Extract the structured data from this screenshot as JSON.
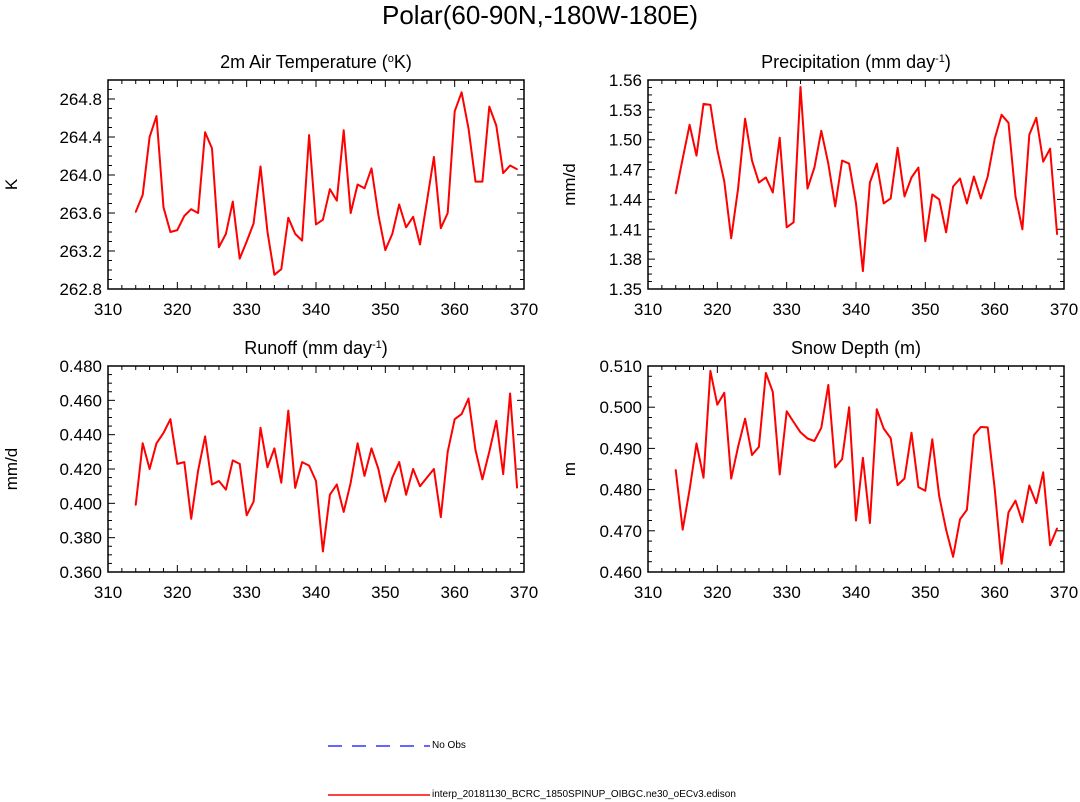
{
  "title": "Polar(60-90N,-180W-180E)",
  "colors": {
    "model": "#ff0000",
    "obs": "#3333ff",
    "axis": "#000000"
  },
  "legend": {
    "obs_label": "No Obs",
    "model_label": "interp_20181130_BCRC_1850SPINUP_OIBGC.ne30_oECv3.edison"
  },
  "chart_data": [
    {
      "type": "line",
      "title": "2m Air Temperature (",
      "title_sup": "o",
      "title_tail": "K)",
      "xlabel": "",
      "ylabel": "K",
      "xlim": [
        310,
        370
      ],
      "ylim": [
        262.8,
        265.0
      ],
      "xticks": [
        "310",
        "320",
        "330",
        "340",
        "350",
        "360",
        "370"
      ],
      "yticks": [
        "262.8",
        "263.2",
        "263.6",
        "264.0",
        "264.4",
        "264.8"
      ],
      "ytick_values": [
        262.8,
        263.2,
        263.6,
        264.0,
        264.4,
        264.8
      ],
      "series": [
        {
          "name": "interp_20181130_BCRC_1850SPINUP_OIBGC.ne30_oECv3.edison",
          "x": [
            314,
            315,
            316,
            317,
            318,
            319,
            320,
            321,
            322,
            323,
            324,
            325,
            326,
            327,
            328,
            329,
            330,
            331,
            332,
            333,
            334,
            335,
            336,
            337,
            338,
            339,
            340,
            341,
            342,
            343,
            344,
            345,
            346,
            347,
            348,
            349,
            350,
            351,
            352,
            353,
            354,
            355,
            356,
            357,
            358,
            359,
            360,
            361,
            362,
            363,
            364,
            365,
            366,
            367,
            368,
            369
          ],
          "values": [
            263.61,
            263.79,
            264.4,
            264.62,
            263.66,
            263.4,
            263.42,
            263.57,
            263.64,
            263.6,
            264.45,
            264.28,
            263.24,
            263.38,
            263.72,
            263.12,
            263.3,
            263.49,
            264.09,
            263.4,
            262.95,
            263.01,
            263.55,
            263.38,
            263.31,
            264.42,
            263.48,
            263.53,
            263.85,
            263.73,
            264.47,
            263.6,
            263.9,
            263.86,
            264.07,
            263.58,
            263.21,
            263.38,
            263.69,
            263.45,
            263.56,
            263.27,
            263.72,
            264.19,
            263.44,
            263.6,
            264.67,
            264.87,
            264.49,
            263.93,
            263.93,
            264.72,
            264.52,
            264.02,
            264.1,
            264.06
          ]
        }
      ]
    },
    {
      "type": "line",
      "title": "Precipitation (mm day",
      "title_sup": "-1",
      "title_tail": ")",
      "xlabel": "",
      "ylabel": "mm/d",
      "xlim": [
        310,
        370
      ],
      "ylim": [
        1.35,
        1.56
      ],
      "xticks": [
        "310",
        "320",
        "330",
        "340",
        "350",
        "360",
        "370"
      ],
      "yticks": [
        "1.35",
        "1.38",
        "1.41",
        "1.44",
        "1.47",
        "1.50",
        "1.53",
        "1.56"
      ],
      "ytick_values": [
        1.35,
        1.38,
        1.41,
        1.44,
        1.47,
        1.5,
        1.53,
        1.56
      ],
      "series": [
        {
          "name": "interp_20181130_BCRC_1850SPINUP_OIBGC.ne30_oECv3.edison",
          "x": [
            314,
            315,
            316,
            317,
            318,
            319,
            320,
            321,
            322,
            323,
            324,
            325,
            326,
            327,
            328,
            329,
            330,
            331,
            332,
            333,
            334,
            335,
            336,
            337,
            338,
            339,
            340,
            341,
            342,
            343,
            344,
            345,
            346,
            347,
            348,
            349,
            350,
            351,
            352,
            353,
            354,
            355,
            356,
            357,
            358,
            359,
            360,
            361,
            362,
            363,
            364,
            365,
            366,
            367,
            368,
            369
          ],
          "values": [
            1.446,
            1.481,
            1.515,
            1.484,
            1.536,
            1.535,
            1.49,
            1.458,
            1.401,
            1.451,
            1.521,
            1.479,
            1.457,
            1.462,
            1.447,
            1.502,
            1.412,
            1.417,
            1.553,
            1.451,
            1.472,
            1.509,
            1.476,
            1.433,
            1.479,
            1.476,
            1.436,
            1.368,
            1.457,
            1.476,
            1.436,
            1.441,
            1.492,
            1.443,
            1.462,
            1.472,
            1.398,
            1.445,
            1.44,
            1.407,
            1.453,
            1.461,
            1.436,
            1.463,
            1.441,
            1.463,
            1.501,
            1.525,
            1.517,
            1.443,
            1.41,
            1.505,
            1.522,
            1.478,
            1.491,
            1.405
          ]
        }
      ]
    },
    {
      "type": "line",
      "title": "Runoff (mm day",
      "title_sup": "-1",
      "title_tail": ")",
      "xlabel": "",
      "ylabel": "mm/d",
      "xlim": [
        310,
        370
      ],
      "ylim": [
        0.36,
        0.48
      ],
      "xticks": [
        "310",
        "320",
        "330",
        "340",
        "350",
        "360",
        "370"
      ],
      "yticks": [
        "0.360",
        "0.380",
        "0.400",
        "0.420",
        "0.440",
        "0.460",
        "0.480"
      ],
      "ytick_values": [
        0.36,
        0.38,
        0.4,
        0.42,
        0.44,
        0.46,
        0.48
      ],
      "series": [
        {
          "name": "interp_20181130_BCRC_1850SPINUP_OIBGC.ne30_oECv3.edison",
          "x": [
            314,
            315,
            316,
            317,
            318,
            319,
            320,
            321,
            322,
            323,
            324,
            325,
            326,
            327,
            328,
            329,
            330,
            331,
            332,
            333,
            334,
            335,
            336,
            337,
            338,
            339,
            340,
            341,
            342,
            343,
            344,
            345,
            346,
            347,
            348,
            349,
            350,
            351,
            352,
            353,
            354,
            355,
            356,
            357,
            358,
            359,
            360,
            361,
            362,
            363,
            364,
            365,
            366,
            367,
            368,
            369
          ],
          "values": [
            0.399,
            0.435,
            0.42,
            0.435,
            0.441,
            0.449,
            0.423,
            0.424,
            0.391,
            0.419,
            0.439,
            0.411,
            0.413,
            0.408,
            0.425,
            0.423,
            0.393,
            0.401,
            0.444,
            0.421,
            0.432,
            0.412,
            0.454,
            0.409,
            0.424,
            0.422,
            0.413,
            0.372,
            0.405,
            0.411,
            0.395,
            0.412,
            0.435,
            0.416,
            0.432,
            0.42,
            0.401,
            0.415,
            0.424,
            0.405,
            0.42,
            0.41,
            0.415,
            0.42,
            0.392,
            0.43,
            0.449,
            0.452,
            0.461,
            0.431,
            0.414,
            0.43,
            0.448,
            0.417,
            0.464,
            0.409
          ]
        }
      ]
    },
    {
      "type": "line",
      "title": "Snow Depth (m)",
      "title_sup": "",
      "title_tail": "",
      "xlabel": "",
      "ylabel": "m",
      "xlim": [
        310,
        370
      ],
      "ylim": [
        0.46,
        0.51
      ],
      "xticks": [
        "310",
        "320",
        "330",
        "340",
        "350",
        "360",
        "370"
      ],
      "yticks": [
        "0.460",
        "0.470",
        "0.480",
        "0.490",
        "0.500",
        "0.510"
      ],
      "ytick_values": [
        0.46,
        0.47,
        0.48,
        0.49,
        0.5,
        0.51
      ],
      "series": [
        {
          "name": "interp_20181130_BCRC_1850SPINUP_OIBGC.ne30_oECv3.edison",
          "x": [
            314,
            315,
            316,
            317,
            318,
            319,
            320,
            321,
            322,
            323,
            324,
            325,
            326,
            327,
            328,
            329,
            330,
            331,
            332,
            333,
            334,
            335,
            336,
            337,
            338,
            339,
            340,
            341,
            342,
            343,
            344,
            345,
            346,
            347,
            348,
            349,
            350,
            351,
            352,
            353,
            354,
            355,
            356,
            357,
            358,
            359,
            360,
            361,
            362,
            363,
            364,
            365,
            366,
            367,
            368,
            369
          ],
          "values": [
            0.4848,
            0.4703,
            0.48,
            0.4912,
            0.4829,
            0.5088,
            0.5006,
            0.5035,
            0.4827,
            0.4904,
            0.4972,
            0.4884,
            0.4904,
            0.5083,
            0.5037,
            0.4837,
            0.499,
            0.4964,
            0.4939,
            0.4924,
            0.4918,
            0.495,
            0.5054,
            0.4854,
            0.4874,
            0.5,
            0.4725,
            0.4877,
            0.4719,
            0.4995,
            0.4948,
            0.4925,
            0.4811,
            0.4827,
            0.4938,
            0.4806,
            0.4797,
            0.4922,
            0.4784,
            0.4703,
            0.4637,
            0.4728,
            0.4751,
            0.4932,
            0.4952,
            0.4951,
            0.4802,
            0.462,
            0.4745,
            0.4773,
            0.4721,
            0.481,
            0.4767,
            0.4842,
            0.4665,
            0.4706
          ]
        }
      ]
    }
  ]
}
